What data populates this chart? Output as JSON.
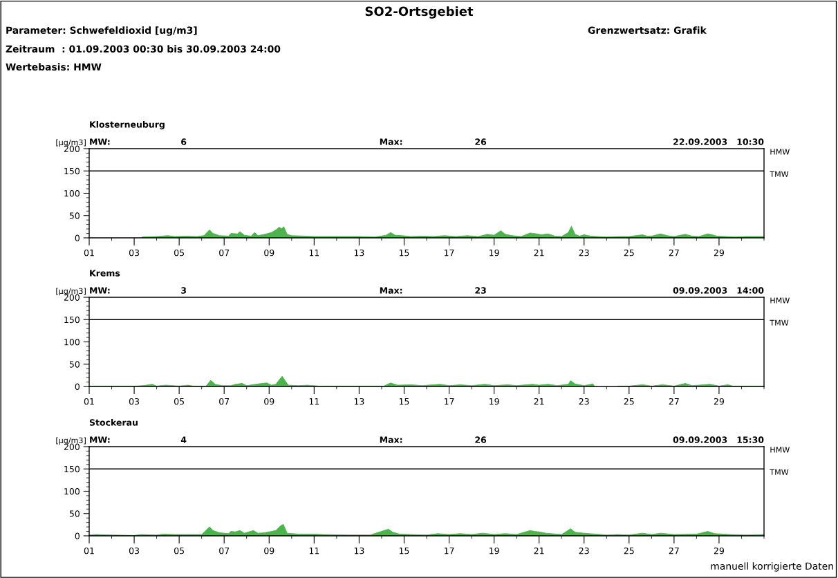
{
  "chart_data": [
    {
      "type": "area",
      "title": "Klosterneuburg",
      "ylabel": "[µg/m3]",
      "color": "#4db34d",
      "annotations": [
        "MW:",
        "6",
        "Max:",
        "26",
        "22.09.2003   10:30",
        "HMW",
        "SO2-Ortsgebiet",
        "Parameter: Schwefeldioxid [ug/m3]",
        "Zeitraum  : 01.09.2003 00:30 bis 30.09.2003 24:00",
        "Wertebasis: HMW",
        "Grenzwertsatz: Grafik"
      ],
      "x": [
        3.35,
        4.0,
        4.5,
        4.8,
        5.3,
        5.8,
        6.1,
        6.35,
        6.5,
        6.8,
        7.2,
        7.3,
        7.6,
        7.7,
        7.9,
        8.2,
        8.35,
        8.5,
        8.8,
        9.1,
        9.3,
        9.45,
        9.55,
        9.65,
        9.8,
        10.0,
        10.6,
        11.0,
        12.0,
        13.0,
        13.7,
        14.2,
        14.4,
        14.6,
        14.9,
        15.3,
        15.8,
        16.3,
        16.8,
        17.3,
        17.8,
        18.3,
        18.7,
        19.0,
        19.3,
        19.5,
        19.8,
        20.2,
        20.6,
        20.9,
        21.1,
        21.4,
        21.7,
        22.0,
        22.3,
        22.44,
        22.6,
        22.8,
        23.0,
        23.3,
        23.6,
        24.0,
        24.5,
        25.0,
        25.6,
        25.8,
        26.0,
        26.4,
        26.7,
        27.0,
        27.5,
        27.8,
        28.1,
        28.5,
        28.7,
        28.9,
        29.3,
        29.7,
        30.2,
        31.0
      ],
      "values": [
        2,
        3,
        5,
        3,
        4,
        3,
        5,
        18,
        10,
        5,
        4,
        10,
        9,
        14,
        6,
        4,
        12,
        5,
        8,
        12,
        18,
        24,
        20,
        25,
        8,
        5,
        4,
        3,
        3,
        3,
        2,
        6,
        12,
        6,
        5,
        3,
        4,
        3,
        5,
        3,
        5,
        3,
        8,
        6,
        16,
        8,
        5,
        3,
        11,
        9,
        7,
        9,
        4,
        3,
        12,
        26,
        8,
        4,
        7,
        4,
        3,
        2,
        3,
        3,
        7,
        4,
        4,
        9,
        5,
        3,
        8,
        4,
        3,
        9,
        7,
        4,
        3,
        2,
        3,
        3
      ],
      "xlim": [
        1,
        31
      ],
      "xticks": [
        {
          "value": 1,
          "label": "01"
        },
        {
          "value": 2,
          "label": null
        },
        {
          "value": 3,
          "label": "03"
        },
        {
          "value": 4,
          "label": null
        },
        {
          "value": 5,
          "label": "05"
        },
        {
          "value": 6,
          "label": null
        },
        {
          "value": 7,
          "label": "07"
        },
        {
          "value": 8,
          "label": null
        },
        {
          "value": 9,
          "label": "09"
        },
        {
          "value": 10,
          "label": null
        },
        11,
        {
          "value": 12,
          "label": null
        },
        13,
        {
          "value": 14,
          "label": null
        },
        15,
        {
          "value": 16,
          "label": null
        },
        17,
        {
          "value": 18,
          "label": null
        },
        19,
        {
          "value": 20,
          "label": null
        },
        21,
        {
          "value": 22,
          "label": null
        },
        23,
        {
          "value": 24,
          "label": null
        },
        25,
        {
          "value": 26,
          "label": null
        },
        27,
        {
          "value": 28,
          "label": null
        },
        29,
        {
          "value": 30,
          "label": null
        },
        {
          "value": 31,
          "label": null
        }
      ],
      "ylim": [
        0,
        200
      ],
      "yticks": [
        0,
        {
          "value": 10,
          "label": null
        },
        {
          "value": 20,
          "label": null
        },
        {
          "value": 30,
          "label": null
        },
        {
          "value": 40,
          "label": null
        },
        50,
        {
          "value": 60,
          "label": null
        },
        {
          "value": 70,
          "label": null
        },
        {
          "value": 80,
          "label": null
        },
        {
          "value": 90,
          "label": null
        },
        100,
        {
          "value": 110,
          "label": null
        },
        {
          "value": 120,
          "label": null
        },
        {
          "value": 130,
          "label": null
        },
        {
          "value": 140,
          "label": null
        },
        150,
        {
          "value": 160,
          "label": null
        },
        {
          "value": 170,
          "label": null
        },
        {
          "value": 180,
          "label": null
        },
        {
          "value": 190,
          "label": null
        },
        200
      ],
      "ref_lines": [
        {
          "axis": "y",
          "value": 150,
          "label": "TMW",
          "color": "#000000"
        }
      ]
    },
    {
      "type": "area",
      "title": "Krems",
      "ylabel": "[µg/m3]",
      "color": "#4db34d",
      "annotations": [
        "MW:",
        "3",
        "Max:",
        "23",
        "09.09.2003   14:00",
        "HMW"
      ],
      "x": [
        1.0,
        2.0,
        3.0,
        3.4,
        3.8,
        4.0,
        4.4,
        5.0,
        5.4,
        5.6,
        6.2,
        6.4,
        6.6,
        6.9,
        7.3,
        7.5,
        7.8,
        8.0,
        8.4,
        8.7,
        8.9,
        9.1,
        9.3,
        9.45,
        9.58,
        9.7,
        9.85,
        10.3,
        10.7,
        11.2,
        12.5,
        14.1,
        14.4,
        14.7,
        15.3,
        15.8,
        16.6,
        17.0,
        17.5,
        18.0,
        18.6,
        19.0,
        19.6,
        20.0,
        20.7,
        21.0,
        21.4,
        21.8,
        22.3,
        22.4,
        22.6,
        23.0,
        23.4,
        23.45,
        24.0,
        24.5,
        25.0,
        25.6,
        26.0,
        26.5,
        27.0,
        27.5,
        27.8,
        28.6,
        29.0,
        29.4,
        29.6,
        30.5,
        31.0
      ],
      "values": [
        1,
        1,
        1,
        2,
        5,
        1,
        3,
        1,
        3,
        1,
        1,
        14,
        5,
        2,
        2,
        5,
        7,
        2,
        5,
        7,
        8,
        3,
        5,
        15,
        23,
        14,
        3,
        2,
        3,
        1,
        1,
        1,
        8,
        3,
        4,
        2,
        5,
        2,
        4,
        2,
        5,
        2,
        4,
        2,
        5,
        3,
        5,
        2,
        5,
        13,
        6,
        2,
        6,
        2,
        null,
        1,
        1,
        4,
        1,
        4,
        1,
        7,
        2,
        5,
        1,
        4,
        1,
        1,
        1
      ],
      "xlim": [
        1,
        31
      ],
      "xticks": [
        {
          "value": 1,
          "label": "01"
        },
        {
          "value": 2,
          "label": null
        },
        {
          "value": 3,
          "label": "03"
        },
        {
          "value": 4,
          "label": null
        },
        {
          "value": 5,
          "label": "05"
        },
        {
          "value": 6,
          "label": null
        },
        {
          "value": 7,
          "label": "07"
        },
        {
          "value": 8,
          "label": null
        },
        {
          "value": 9,
          "label": "09"
        },
        {
          "value": 10,
          "label": null
        },
        11,
        {
          "value": 12,
          "label": null
        },
        13,
        {
          "value": 14,
          "label": null
        },
        15,
        {
          "value": 16,
          "label": null
        },
        17,
        {
          "value": 18,
          "label": null
        },
        19,
        {
          "value": 20,
          "label": null
        },
        21,
        {
          "value": 22,
          "label": null
        },
        23,
        {
          "value": 24,
          "label": null
        },
        25,
        {
          "value": 26,
          "label": null
        },
        27,
        {
          "value": 28,
          "label": null
        },
        29,
        {
          "value": 30,
          "label": null
        },
        {
          "value": 31,
          "label": null
        }
      ],
      "ylim": [
        0,
        200
      ],
      "yticks": [
        0,
        {
          "value": 10,
          "label": null
        },
        {
          "value": 20,
          "label": null
        },
        {
          "value": 30,
          "label": null
        },
        {
          "value": 40,
          "label": null
        },
        50,
        {
          "value": 60,
          "label": null
        },
        {
          "value": 70,
          "label": null
        },
        {
          "value": 80,
          "label": null
        },
        {
          "value": 90,
          "label": null
        },
        100,
        {
          "value": 110,
          "label": null
        },
        {
          "value": 120,
          "label": null
        },
        {
          "value": 130,
          "label": null
        },
        {
          "value": 140,
          "label": null
        },
        150,
        {
          "value": 160,
          "label": null
        },
        {
          "value": 170,
          "label": null
        },
        {
          "value": 180,
          "label": null
        },
        {
          "value": 190,
          "label": null
        },
        200
      ],
      "ref_lines": [
        {
          "axis": "y",
          "value": 150,
          "label": "TMW",
          "color": "#000000"
        }
      ]
    },
    {
      "type": "area",
      "title": "Stockerau",
      "ylabel": "[µg/m3]",
      "color": "#4db34d",
      "annotations": [
        "MW:",
        "4",
        "Max:",
        "26",
        "09.09.2003   15:30",
        "HMW",
        "manuell korrigierte Daten"
      ],
      "x": [
        1.0,
        1.3,
        2.0,
        3.0,
        3.3,
        4.0,
        4.3,
        4.8,
        5.4,
        6.0,
        6.35,
        6.5,
        6.8,
        7.2,
        7.3,
        7.5,
        7.7,
        7.9,
        8.3,
        8.5,
        8.8,
        9.1,
        9.3,
        9.5,
        9.63,
        9.8,
        10.3,
        11.0,
        11.4,
        12.5,
        13.5,
        14.3,
        14.5,
        14.8,
        15.3,
        16.0,
        16.5,
        17.0,
        17.5,
        18.0,
        18.5,
        19.0,
        19.5,
        20.0,
        20.6,
        20.8,
        21.0,
        21.3,
        22.0,
        22.4,
        22.6,
        23.0,
        23.5,
        24.0,
        24.5,
        25.0,
        25.6,
        26.0,
        26.4,
        27.0,
        28.0,
        28.5,
        28.8,
        29.5,
        30.2,
        31.0
      ],
      "values": [
        2,
        3,
        2,
        1,
        3,
        2,
        4,
        3,
        3,
        3,
        20,
        12,
        7,
        5,
        10,
        9,
        12,
        6,
        12,
        6,
        7,
        10,
        12,
        22,
        26,
        6,
        4,
        4,
        3,
        2,
        2,
        15,
        8,
        4,
        3,
        2,
        5,
        3,
        5,
        3,
        6,
        3,
        5,
        3,
        12,
        10,
        9,
        6,
        3,
        16,
        8,
        6,
        4,
        2,
        3,
        2,
        6,
        3,
        6,
        3,
        4,
        10,
        5,
        3,
        2,
        3
      ],
      "xlim": [
        1,
        31
      ],
      "xticks": [
        {
          "value": 1,
          "label": "01"
        },
        {
          "value": 2,
          "label": null
        },
        {
          "value": 3,
          "label": "03"
        },
        {
          "value": 4,
          "label": null
        },
        {
          "value": 5,
          "label": "05"
        },
        {
          "value": 6,
          "label": null
        },
        {
          "value": 7,
          "label": "07"
        },
        {
          "value": 8,
          "label": null
        },
        {
          "value": 9,
          "label": "09"
        },
        {
          "value": 10,
          "label": null
        },
        11,
        {
          "value": 12,
          "label": null
        },
        13,
        {
          "value": 14,
          "label": null
        },
        15,
        {
          "value": 16,
          "label": null
        },
        17,
        {
          "value": 18,
          "label": null
        },
        19,
        {
          "value": 20,
          "label": null
        },
        21,
        {
          "value": 22,
          "label": null
        },
        23,
        {
          "value": 24,
          "label": null
        },
        25,
        {
          "value": 26,
          "label": null
        },
        27,
        {
          "value": 28,
          "label": null
        },
        29,
        {
          "value": 30,
          "label": null
        },
        {
          "value": 31,
          "label": null
        }
      ],
      "ylim": [
        0,
        200
      ],
      "yticks": [
        0,
        {
          "value": 10,
          "label": null
        },
        {
          "value": 20,
          "label": null
        },
        {
          "value": 30,
          "label": null
        },
        {
          "value": 40,
          "label": null
        },
        50,
        {
          "value": 60,
          "label": null
        },
        {
          "value": 70,
          "label": null
        },
        {
          "value": 80,
          "label": null
        },
        {
          "value": 90,
          "label": null
        },
        100,
        {
          "value": 110,
          "label": null
        },
        {
          "value": 120,
          "label": null
        },
        {
          "value": 130,
          "label": null
        },
        {
          "value": 140,
          "label": null
        },
        150,
        {
          "value": 160,
          "label": null
        },
        {
          "value": 170,
          "label": null
        },
        {
          "value": 180,
          "label": null
        },
        {
          "value": 190,
          "label": null
        },
        200
      ],
      "ref_lines": [
        {
          "axis": "y",
          "value": 150,
          "label": "TMW",
          "color": "#000000"
        }
      ]
    }
  ]
}
